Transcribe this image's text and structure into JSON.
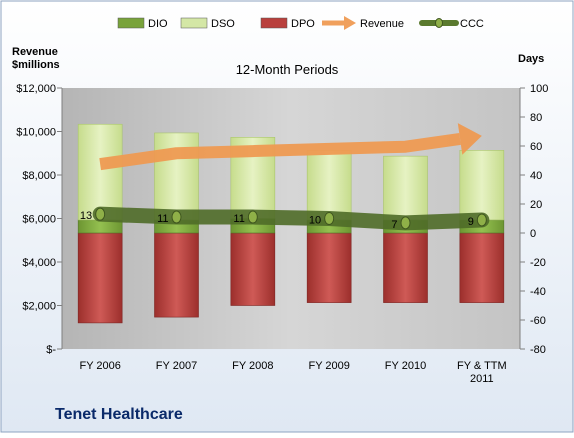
{
  "chart_data": {
    "type": "bar",
    "title": "12-Month Periods",
    "company": "Tenet Healthcare",
    "left_axis_label_line1": "Revenue",
    "left_axis_label_line2": "$millions",
    "right_axis_label": "Days",
    "categories": [
      "FY 2006",
      "FY 2007",
      "FY 2008",
      "FY 2009",
      "FY 2010",
      "FY & TTM 2011"
    ],
    "left_ylim": [
      0,
      12000
    ],
    "left_ticks": [
      {
        "value": 0,
        "label": "$-"
      },
      {
        "value": 2000,
        "label": "$2,000"
      },
      {
        "value": 4000,
        "label": "$4,000"
      },
      {
        "value": 6000,
        "label": "$6,000"
      },
      {
        "value": 8000,
        "label": "$8,000"
      },
      {
        "value": 10000,
        "label": "$10,000"
      },
      {
        "value": 12000,
        "label": "$12,000"
      }
    ],
    "right_ylim": [
      -80,
      100
    ],
    "right_ticks": [
      -80,
      -60,
      -40,
      -20,
      0,
      20,
      40,
      60,
      80,
      100
    ],
    "legend": [
      {
        "name": "DIO",
        "type": "bar",
        "color": "#79a33b"
      },
      {
        "name": "DSO",
        "type": "bar",
        "color": "#d4e7a6"
      },
      {
        "name": "DPO",
        "type": "bar",
        "color": "#b9403d"
      },
      {
        "name": "Revenue",
        "type": "arrow",
        "color": "#f0a05c"
      },
      {
        "name": "CCC",
        "type": "line",
        "color": "#5a7a2e"
      }
    ],
    "series": [
      {
        "name": "DIO",
        "axis": "right",
        "values": [
          9,
          9,
          10,
          9,
          9,
          9
        ]
      },
      {
        "name": "DSO",
        "axis": "right",
        "values": [
          66,
          60,
          56,
          48,
          44,
          48
        ]
      },
      {
        "name": "DPO",
        "axis": "right",
        "values": [
          -62,
          -58,
          -50,
          -48,
          -48,
          -48
        ]
      },
      {
        "name": "Revenue",
        "axis": "left",
        "values": [
          8500,
          9000,
          9100,
          9200,
          9300,
          9800
        ]
      },
      {
        "name": "CCC",
        "axis": "right",
        "values": [
          13,
          11,
          11,
          10,
          7,
          9
        ]
      }
    ],
    "ccc_labels": [
      "13",
      "11",
      "11",
      "10",
      "7",
      "9"
    ],
    "grid": false,
    "legend_position": "top"
  }
}
